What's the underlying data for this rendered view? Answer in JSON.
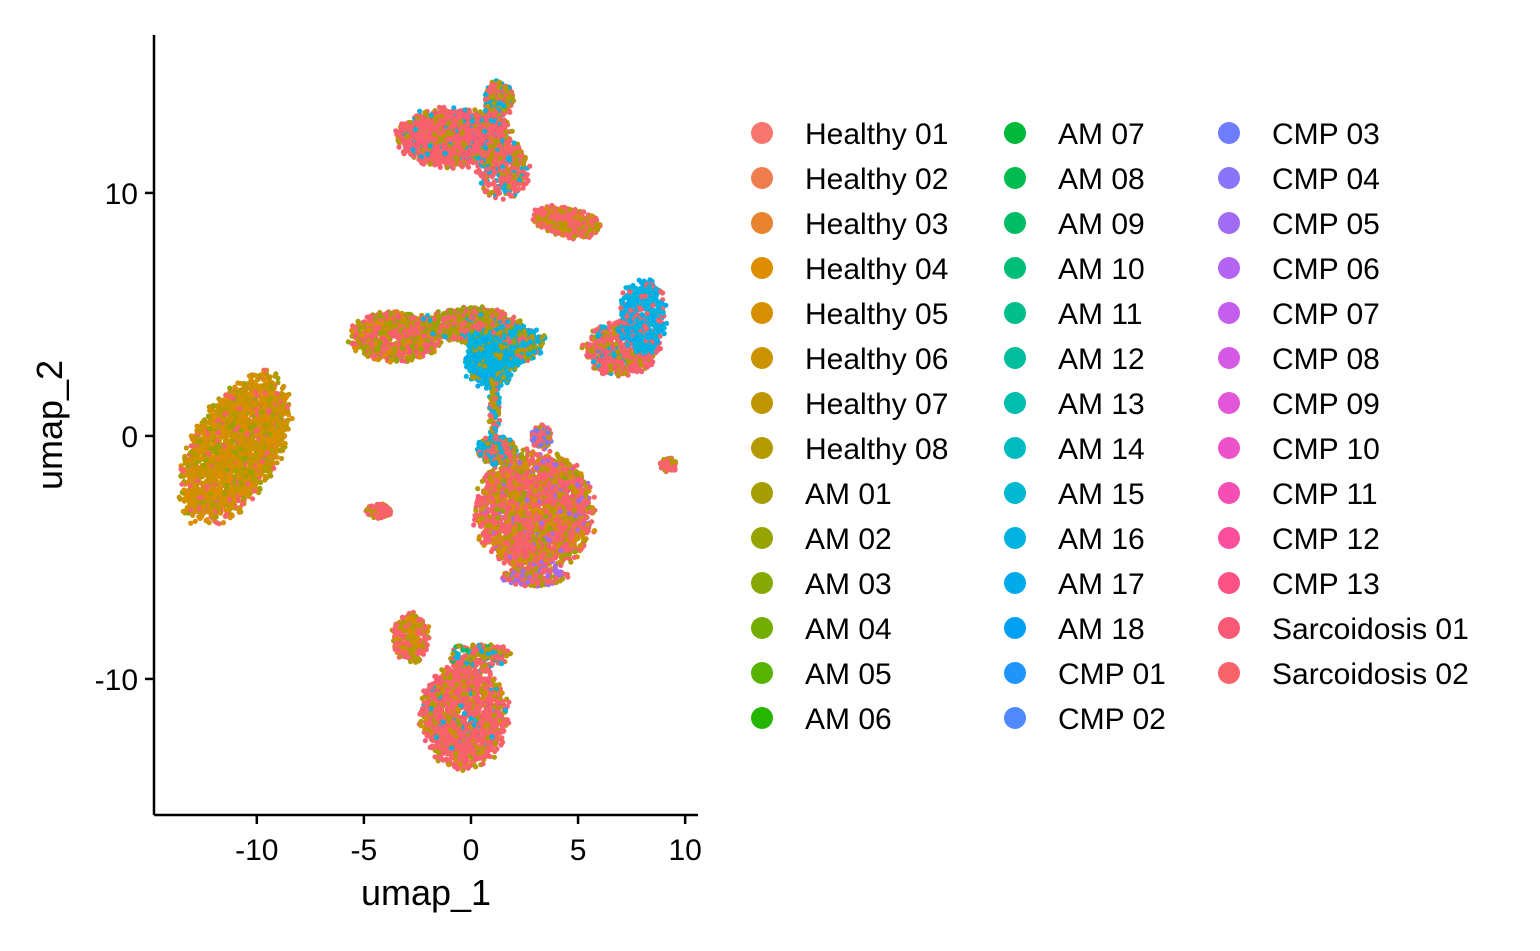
{
  "chart_data": {
    "type": "scatter",
    "title": "",
    "xlabel": "umap_1",
    "ylabel": "umap_2",
    "xlim": [
      -14.8,
      10.6
    ],
    "ylim": [
      -15.6,
      16.5
    ],
    "x_ticks": [
      {
        "value": -10,
        "label": "-10"
      },
      {
        "value": -5,
        "label": "-5"
      },
      {
        "value": 0,
        "label": "0"
      },
      {
        "value": 5,
        "label": "5"
      },
      {
        "value": 10,
        "label": "10"
      }
    ],
    "y_ticks": [
      {
        "value": -10,
        "label": "-10"
      },
      {
        "value": 0,
        "label": "0"
      },
      {
        "value": 10,
        "label": "10"
      }
    ],
    "grid": false,
    "legend_position": "right",
    "series": [
      {
        "name": "Healthy 01",
        "color": "#F8766D"
      },
      {
        "name": "Healthy 02",
        "color": "#F07D4E"
      },
      {
        "name": "Healthy 03",
        "color": "#E8842F"
      },
      {
        "name": "Healthy 04",
        "color": "#DE8C00"
      },
      {
        "name": "Healthy 05",
        "color": "#D58F00"
      },
      {
        "name": "Healthy 06",
        "color": "#CB9300"
      },
      {
        "name": "Healthy 07",
        "color": "#BF9600"
      },
      {
        "name": "Healthy 08",
        "color": "#B39A00"
      },
      {
        "name": "AM 01",
        "color": "#A69E00"
      },
      {
        "name": "AM 02",
        "color": "#97A300"
      },
      {
        "name": "AM 03",
        "color": "#86A800"
      },
      {
        "name": "AM 04",
        "color": "#72AD00"
      },
      {
        "name": "AM 05",
        "color": "#58B200"
      },
      {
        "name": "AM 06",
        "color": "#25B700"
      },
      {
        "name": "AM 07",
        "color": "#00B93A"
      },
      {
        "name": "AM 08",
        "color": "#00BB50"
      },
      {
        "name": "AM 09",
        "color": "#00BC64"
      },
      {
        "name": "AM 10",
        "color": "#00BD77"
      },
      {
        "name": "AM 11",
        "color": "#00BE8A"
      },
      {
        "name": "AM 12",
        "color": "#00BE9C"
      },
      {
        "name": "AM 13",
        "color": "#00BEAE"
      },
      {
        "name": "AM 14",
        "color": "#00BCC0"
      },
      {
        "name": "AM 15",
        "color": "#00B8D0"
      },
      {
        "name": "AM 16",
        "color": "#00B2DF"
      },
      {
        "name": "AM 17",
        "color": "#00AAEA"
      },
      {
        "name": "AM 18",
        "color": "#00A0F3"
      },
      {
        "name": "CMP 01",
        "color": "#1F95FA"
      },
      {
        "name": "CMP 02",
        "color": "#5088FD"
      },
      {
        "name": "CMP 03",
        "color": "#6E7DFF"
      },
      {
        "name": "CMP 04",
        "color": "#8A74F9"
      },
      {
        "name": "CMP 05",
        "color": "#A16BF4"
      },
      {
        "name": "CMP 06",
        "color": "#B464F2"
      },
      {
        "name": "CMP 07",
        "color": "#C55EEC"
      },
      {
        "name": "CMP 08",
        "color": "#D459E4"
      },
      {
        "name": "CMP 09",
        "color": "#E256DA"
      },
      {
        "name": "CMP 10",
        "color": "#EE52C8"
      },
      {
        "name": "CMP 11",
        "color": "#F64FB4"
      },
      {
        "name": "CMP 12",
        "color": "#FB4F9C"
      },
      {
        "name": "CMP 13",
        "color": "#FC5286"
      },
      {
        "name": "Sarcoidosis 01",
        "color": "#FB5A76"
      },
      {
        "name": "Sarcoidosis 02",
        "color": "#F8626B"
      }
    ],
    "clusters": [
      {
        "cx": -11.0,
        "cy": -0.5,
        "rx": 1.9,
        "ry": 3.4,
        "angle": -35,
        "n": 2200,
        "mix": [
          [
            4,
            0.25
          ],
          [
            5,
            0.2
          ],
          [
            3,
            0.15
          ],
          [
            6,
            0.12
          ],
          [
            8,
            0.1
          ],
          [
            40,
            0.12
          ],
          [
            9,
            0.06
          ]
        ]
      },
      {
        "cx": -0.8,
        "cy": 12.3,
        "rx": 2.6,
        "ry": 1.2,
        "angle": 0,
        "n": 1500,
        "mix": [
          [
            40,
            0.55
          ],
          [
            39,
            0.2
          ],
          [
            7,
            0.15
          ],
          [
            23,
            0.1
          ]
        ]
      },
      {
        "cx": 1.3,
        "cy": 13.8,
        "rx": 0.7,
        "ry": 0.8,
        "angle": 0,
        "n": 200,
        "mix": [
          [
            40,
            0.4
          ],
          [
            7,
            0.3
          ],
          [
            23,
            0.3
          ]
        ]
      },
      {
        "cx": 1.5,
        "cy": 11.0,
        "rx": 1.2,
        "ry": 1.2,
        "angle": 0,
        "n": 400,
        "mix": [
          [
            40,
            0.6
          ],
          [
            7,
            0.25
          ],
          [
            23,
            0.15
          ]
        ]
      },
      {
        "cx": 4.5,
        "cy": 8.8,
        "rx": 1.6,
        "ry": 0.6,
        "angle": -10,
        "n": 450,
        "mix": [
          [
            40,
            0.6
          ],
          [
            7,
            0.25
          ],
          [
            5,
            0.15
          ]
        ]
      },
      {
        "cx": -3.5,
        "cy": 4.1,
        "rx": 2.1,
        "ry": 1.0,
        "angle": 0,
        "n": 900,
        "mix": [
          [
            40,
            0.35
          ],
          [
            4,
            0.2
          ],
          [
            7,
            0.2
          ],
          [
            9,
            0.15
          ],
          [
            39,
            0.1
          ]
        ]
      },
      {
        "cx": 0.0,
        "cy": 4.6,
        "rx": 2.2,
        "ry": 0.7,
        "angle": 0,
        "n": 700,
        "mix": [
          [
            40,
            0.4
          ],
          [
            7,
            0.25
          ],
          [
            9,
            0.2
          ],
          [
            23,
            0.15
          ]
        ]
      },
      {
        "cx": 1.6,
        "cy": 3.8,
        "rx": 1.8,
        "ry": 0.9,
        "angle": 0,
        "n": 600,
        "mix": [
          [
            23,
            0.45
          ],
          [
            7,
            0.25
          ],
          [
            9,
            0.15
          ],
          [
            40,
            0.15
          ]
        ]
      },
      {
        "cx": 0.9,
        "cy": 3.0,
        "rx": 1.2,
        "ry": 1.0,
        "angle": 0,
        "n": 450,
        "mix": [
          [
            23,
            0.6
          ],
          [
            24,
            0.2
          ],
          [
            7,
            0.2
          ]
        ]
      },
      {
        "cx": 1.1,
        "cy": 1.0,
        "rx": 0.25,
        "ry": 1.3,
        "angle": 0,
        "n": 100,
        "mix": [
          [
            23,
            0.5
          ],
          [
            7,
            0.3
          ],
          [
            40,
            0.2
          ]
        ]
      },
      {
        "cx": 7.0,
        "cy": 3.6,
        "rx": 1.7,
        "ry": 1.1,
        "angle": 0,
        "n": 700,
        "mix": [
          [
            40,
            0.55
          ],
          [
            7,
            0.2
          ],
          [
            39,
            0.15
          ],
          [
            23,
            0.1
          ]
        ]
      },
      {
        "cx": 8.0,
        "cy": 4.9,
        "rx": 1.1,
        "ry": 1.5,
        "angle": 0,
        "n": 500,
        "mix": [
          [
            23,
            0.6
          ],
          [
            24,
            0.2
          ],
          [
            40,
            0.2
          ]
        ]
      },
      {
        "cx": 3.0,
        "cy": -3.1,
        "rx": 2.7,
        "ry": 2.4,
        "angle": 0,
        "n": 2600,
        "mix": [
          [
            40,
            0.45
          ],
          [
            7,
            0.15
          ],
          [
            5,
            0.12
          ],
          [
            39,
            0.1
          ],
          [
            4,
            0.08
          ],
          [
            9,
            0.05
          ],
          [
            30,
            0.05
          ]
        ]
      },
      {
        "cx": 1.2,
        "cy": -0.6,
        "rx": 0.9,
        "ry": 0.6,
        "angle": 0,
        "n": 300,
        "mix": [
          [
            23,
            0.35
          ],
          [
            40,
            0.35
          ],
          [
            7,
            0.3
          ]
        ]
      },
      {
        "cx": 3.3,
        "cy": 0.0,
        "rx": 0.5,
        "ry": 0.5,
        "angle": 0,
        "n": 120,
        "mix": [
          [
            40,
            0.6
          ],
          [
            28,
            0.2
          ],
          [
            7,
            0.2
          ]
        ]
      },
      {
        "cx": 3.0,
        "cy": -5.8,
        "rx": 1.5,
        "ry": 0.4,
        "angle": 0,
        "n": 200,
        "mix": [
          [
            40,
            0.4
          ],
          [
            30,
            0.3
          ],
          [
            7,
            0.3
          ]
        ]
      },
      {
        "cx": -4.3,
        "cy": -3.1,
        "rx": 0.6,
        "ry": 0.3,
        "angle": 0,
        "n": 100,
        "mix": [
          [
            40,
            0.7
          ],
          [
            7,
            0.3
          ]
        ]
      },
      {
        "cx": 9.2,
        "cy": -1.2,
        "rx": 0.4,
        "ry": 0.3,
        "angle": 0,
        "n": 70,
        "mix": [
          [
            40,
            0.7
          ],
          [
            7,
            0.3
          ]
        ]
      },
      {
        "cx": -0.3,
        "cy": -11.5,
        "rx": 2.0,
        "ry": 2.1,
        "angle": 0,
        "n": 1500,
        "mix": [
          [
            40,
            0.6
          ],
          [
            7,
            0.15
          ],
          [
            5,
            0.1
          ],
          [
            39,
            0.1
          ],
          [
            23,
            0.05
          ]
        ]
      },
      {
        "cx": -2.8,
        "cy": -8.3,
        "rx": 0.9,
        "ry": 1.0,
        "angle": 0,
        "n": 300,
        "mix": [
          [
            40,
            0.5
          ],
          [
            7,
            0.25
          ],
          [
            4,
            0.25
          ]
        ]
      },
      {
        "cx": 0.4,
        "cy": -9.0,
        "rx": 1.4,
        "ry": 0.5,
        "angle": 0,
        "n": 200,
        "mix": [
          [
            40,
            0.4
          ],
          [
            7,
            0.3
          ],
          [
            16,
            0.15
          ],
          [
            23,
            0.15
          ]
        ]
      }
    ]
  }
}
